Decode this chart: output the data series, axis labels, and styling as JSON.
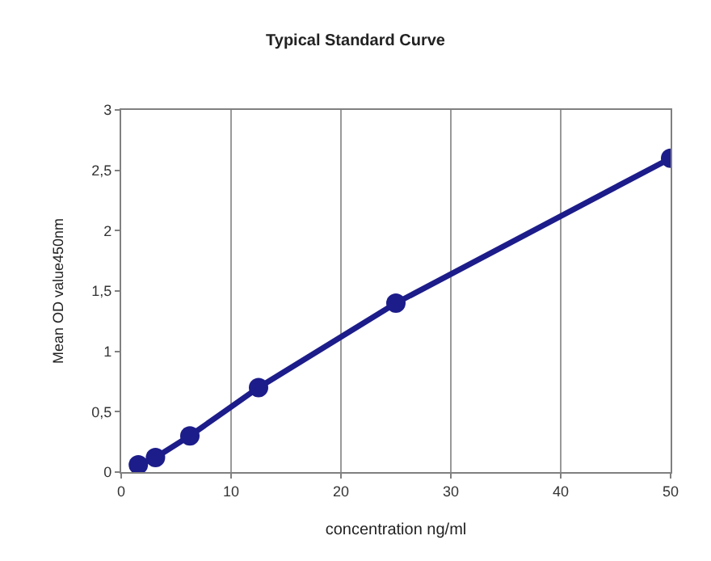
{
  "chart_data": {
    "type": "line",
    "title": "Typical Standard Curve",
    "xlabel": "concentration ng/ml",
    "ylabel": "Mean OD value450nm",
    "x": [
      1.56,
      3.12,
      6.25,
      12.5,
      25,
      50
    ],
    "series": [
      {
        "color": "#1c1c8a",
        "values": [
          0.06,
          0.12,
          0.3,
          0.7,
          1.4,
          2.6
        ]
      }
    ],
    "xlim": [
      0,
      50
    ],
    "xticks": [
      0,
      10,
      20,
      30,
      40,
      50
    ],
    "ylim": [
      0,
      3
    ],
    "yticks": [
      0,
      {
        "value": 0.5,
        "label": "0,5"
      },
      1,
      {
        "value": 1.5,
        "label": "1,5"
      },
      2,
      {
        "value": 2.5,
        "label": "2,5"
      },
      3
    ],
    "grid": "x",
    "marker": "circle",
    "line_style": "solid"
  }
}
